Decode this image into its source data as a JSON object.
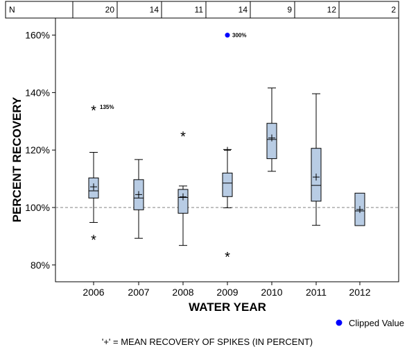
{
  "chart_data": {
    "type": "box",
    "xlabel": "WATER YEAR",
    "ylabel": "PERCENT RECOVERY",
    "ylim": [
      75,
      165
    ],
    "yticks": [
      "80%",
      "100%",
      "120%",
      "140%",
      "160%"
    ],
    "ytick_values": [
      80,
      100,
      120,
      140,
      160
    ],
    "reference_line": 100,
    "n_label": "N",
    "categories": [
      "2006",
      "2007",
      "2008",
      "2009",
      "2010",
      "2011",
      "2012"
    ],
    "counts": [
      "20",
      "14",
      "11",
      "14",
      "9",
      "12",
      "2"
    ],
    "boxes": [
      {
        "year": "2006",
        "whisker_low": 94.8,
        "q1": 103.3,
        "median": 105.8,
        "q3": 110.3,
        "whisker_high": 119.2,
        "mean": 107.2
      },
      {
        "year": "2007",
        "whisker_low": 89.3,
        "q1": 99.2,
        "median": 103.3,
        "q3": 109.7,
        "whisker_high": 116.7,
        "mean": 104.5
      },
      {
        "year": "2008",
        "whisker_low": 86.8,
        "q1": 98.0,
        "median": 103.5,
        "q3": 106.3,
        "whisker_high": 107.5,
        "mean": 103.7
      },
      {
        "year": "2009",
        "whisker_low": 99.9,
        "q1": 103.8,
        "median": 108.5,
        "q3": 112.0,
        "whisker_high": 120.2,
        "mean": 119.9
      },
      {
        "year": "2010",
        "whisker_low": 112.6,
        "q1": 117.0,
        "median": 123.7,
        "q3": 129.3,
        "whisker_high": 141.6,
        "mean": 124.2
      },
      {
        "year": "2011",
        "whisker_low": 93.8,
        "q1": 102.2,
        "median": 107.7,
        "q3": 120.6,
        "whisker_high": 139.6,
        "mean": 110.6
      },
      {
        "year": "2012",
        "whisker_low": null,
        "q1": 93.7,
        "median": 98.8,
        "q3": 105.0,
        "whisker_high": null,
        "mean": 99.3
      }
    ],
    "outliers": [
      {
        "year": "2006",
        "value": 135.0,
        "label": "135%"
      },
      {
        "year": "2006",
        "value": 90.0,
        "label": ""
      },
      {
        "year": "2008",
        "value": 126.0,
        "label": ""
      },
      {
        "year": "2009",
        "value": 84.0,
        "label": ""
      }
    ],
    "clipped": [
      {
        "year": "2009",
        "value": 160.0,
        "label": "300%"
      }
    ],
    "legend": {
      "clipped_label": "Clipped Value",
      "placement": "bottom-right"
    },
    "footnote": "'+' = MEAN RECOVERY OF SPIKES (IN PERCENT)",
    "colors": {
      "box_fill": "#b8cce4",
      "clipped": "#0000ff",
      "reference": "#808080"
    }
  }
}
